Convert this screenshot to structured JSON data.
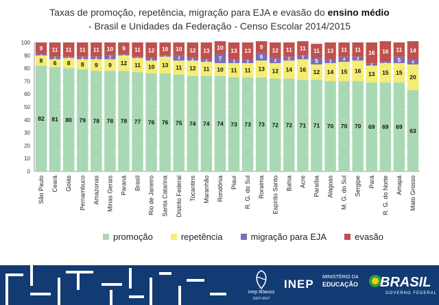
{
  "title_line1": "Taxas de promoção, repetência, migração para EJA e evasão do",
  "title_bold": "ensino médio",
  "title_line2": "- Brasil e Unidades da Federação - Censo Escolar 2014/2015",
  "chart_data": {
    "type": "bar",
    "stacked": true,
    "ylim": [
      0,
      100
    ],
    "yticks": [
      0,
      10,
      20,
      30,
      40,
      50,
      60,
      70,
      80,
      90,
      100
    ],
    "grid": true,
    "legend_position": "bottom",
    "categories": [
      "São Paulo",
      "Ceará",
      "Goiás",
      "Pernambuco",
      "Amazonas",
      "Minas Gerais",
      "Paraná",
      "Brasil",
      "Rio de Janeiro",
      "Santa Catarina",
      "Distrito Federal",
      "Tocantins",
      "Maranhão",
      "Rondônia",
      "Piauí",
      "R. G. do Sul",
      "Roraima",
      "Espírito Santo",
      "Bahia",
      "Acre",
      "Paraíba",
      "Alagoas",
      "M. G. do Sul",
      "Sergipe",
      "Pará",
      "R. G. do Norte",
      "Amapá",
      "Mato Grosso"
    ],
    "series": [
      {
        "name": "promoção",
        "color": "#a8d9b4",
        "values": [
          82,
          81,
          80,
          79,
          78,
          78,
          78,
          77,
          76,
          76,
          75,
          74,
          74,
          74,
          73,
          73,
          73,
          72,
          72,
          71,
          71,
          70,
          70,
          70,
          69,
          69,
          69,
          63
        ]
      },
      {
        "name": "repetência",
        "color": "#f5ec73",
        "values": [
          8,
          6,
          8,
          8,
          9,
          9,
          12,
          11,
          10,
          13,
          11,
          12,
          11,
          10,
          11,
          11,
          13,
          12,
          14,
          16,
          12,
          14,
          15,
          16,
          13,
          15,
          15,
          20
        ]
      },
      {
        "name": "migração para EJA",
        "color": "#7c6bb5",
        "values": [
          1,
          2,
          1,
          2,
          2,
          3,
          1,
          1,
          2,
          1,
          4,
          2,
          2,
          7,
          3,
          3,
          6,
          4,
          3,
          3,
          5,
          3,
          4,
          3,
          2,
          1,
          5,
          4
        ]
      },
      {
        "name": "evasão",
        "color": "#c0504d",
        "values": [
          9,
          11,
          11,
          11,
          11,
          10,
          9,
          11,
          12,
          10,
          10,
          12,
          13,
          10,
          13,
          13,
          9,
          12,
          11,
          11,
          11,
          13,
          11,
          11,
          16,
          16,
          11,
          14
        ]
      }
    ]
  },
  "footer": {
    "inep_badge": "inep 80anos",
    "inep_years": "1937+2017",
    "inep_logo": "INEP",
    "ministry_line1": "MINISTÉRIO DA",
    "ministry_line2": "EDUCAÇÃO",
    "brasil_logo": "BRASIL",
    "brasil_tagline": "GOVERNO FEDERAL"
  }
}
